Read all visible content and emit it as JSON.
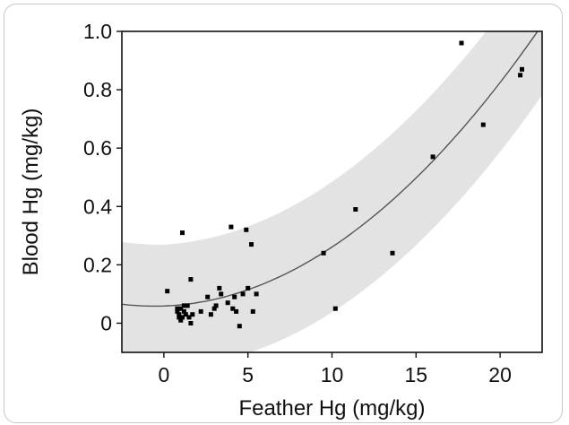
{
  "chart_data": {
    "type": "scatter",
    "xlabel": "Feather Hg (mg/kg)",
    "ylabel": "Blood Hg (mg/kg)",
    "xlim": [
      -2.5,
      22.5
    ],
    "ylim": [
      -0.1,
      1.0
    ],
    "xticks": [
      0,
      5,
      10,
      15,
      20
    ],
    "yticks": [
      0,
      0.2,
      0.4,
      0.6,
      0.8,
      1.0
    ],
    "xtick_labels": [
      "0",
      "5",
      "10",
      "15",
      "20"
    ],
    "ytick_labels": [
      "0",
      "0.2",
      "0.4",
      "0.6",
      "0.8",
      "1.0"
    ],
    "points": [
      {
        "x": 0.2,
        "y": 0.11
      },
      {
        "x": 1.1,
        "y": 0.31
      },
      {
        "x": 1.6,
        "y": 0.15
      },
      {
        "x": 0.8,
        "y": 0.04
      },
      {
        "x": 0.9,
        "y": 0.03
      },
      {
        "x": 1.0,
        "y": 0.05
      },
      {
        "x": 1.1,
        "y": 0.02
      },
      {
        "x": 1.2,
        "y": 0.04
      },
      {
        "x": 0.9,
        "y": 0.02
      },
      {
        "x": 1.3,
        "y": 0.03
      },
      {
        "x": 1.0,
        "y": 0.01
      },
      {
        "x": 1.4,
        "y": 0.06
      },
      {
        "x": 1.5,
        "y": 0.02
      },
      {
        "x": 1.6,
        "y": 0.0
      },
      {
        "x": 1.7,
        "y": 0.03
      },
      {
        "x": 1.2,
        "y": 0.06
      },
      {
        "x": 0.8,
        "y": 0.05
      },
      {
        "x": 2.2,
        "y": 0.04
      },
      {
        "x": 2.6,
        "y": 0.09
      },
      {
        "x": 2.8,
        "y": 0.03
      },
      {
        "x": 3.1,
        "y": 0.06
      },
      {
        "x": 3.3,
        "y": 0.12
      },
      {
        "x": 3.4,
        "y": 0.1
      },
      {
        "x": 3.0,
        "y": 0.05
      },
      {
        "x": 3.8,
        "y": 0.07
      },
      {
        "x": 4.0,
        "y": 0.33
      },
      {
        "x": 4.1,
        "y": 0.05
      },
      {
        "x": 4.2,
        "y": 0.09
      },
      {
        "x": 4.3,
        "y": 0.04
      },
      {
        "x": 4.5,
        "y": -0.01
      },
      {
        "x": 4.7,
        "y": 0.1
      },
      {
        "x": 4.9,
        "y": 0.32
      },
      {
        "x": 5.0,
        "y": 0.12
      },
      {
        "x": 5.2,
        "y": 0.27
      },
      {
        "x": 5.3,
        "y": 0.04
      },
      {
        "x": 5.5,
        "y": 0.1
      },
      {
        "x": 9.5,
        "y": 0.24
      },
      {
        "x": 10.2,
        "y": 0.05
      },
      {
        "x": 11.4,
        "y": 0.39
      },
      {
        "x": 13.6,
        "y": 0.24
      },
      {
        "x": 16.0,
        "y": 0.57
      },
      {
        "x": 17.7,
        "y": 0.96
      },
      {
        "x": 19.0,
        "y": 0.68
      },
      {
        "x": 21.2,
        "y": 0.85
      },
      {
        "x": 21.3,
        "y": 0.87
      }
    ],
    "fit": {
      "type": "quadratic",
      "a": 0.00181,
      "b": 0.00209,
      "c": 0.059
    },
    "prediction_band": {
      "half_width_at_0": 0.21,
      "half_width_at_22": 0.24
    },
    "colors": {
      "points": "#000000",
      "fit_line": "#555555",
      "band": "#e3e3e3"
    },
    "grid": false,
    "legend": "none"
  }
}
